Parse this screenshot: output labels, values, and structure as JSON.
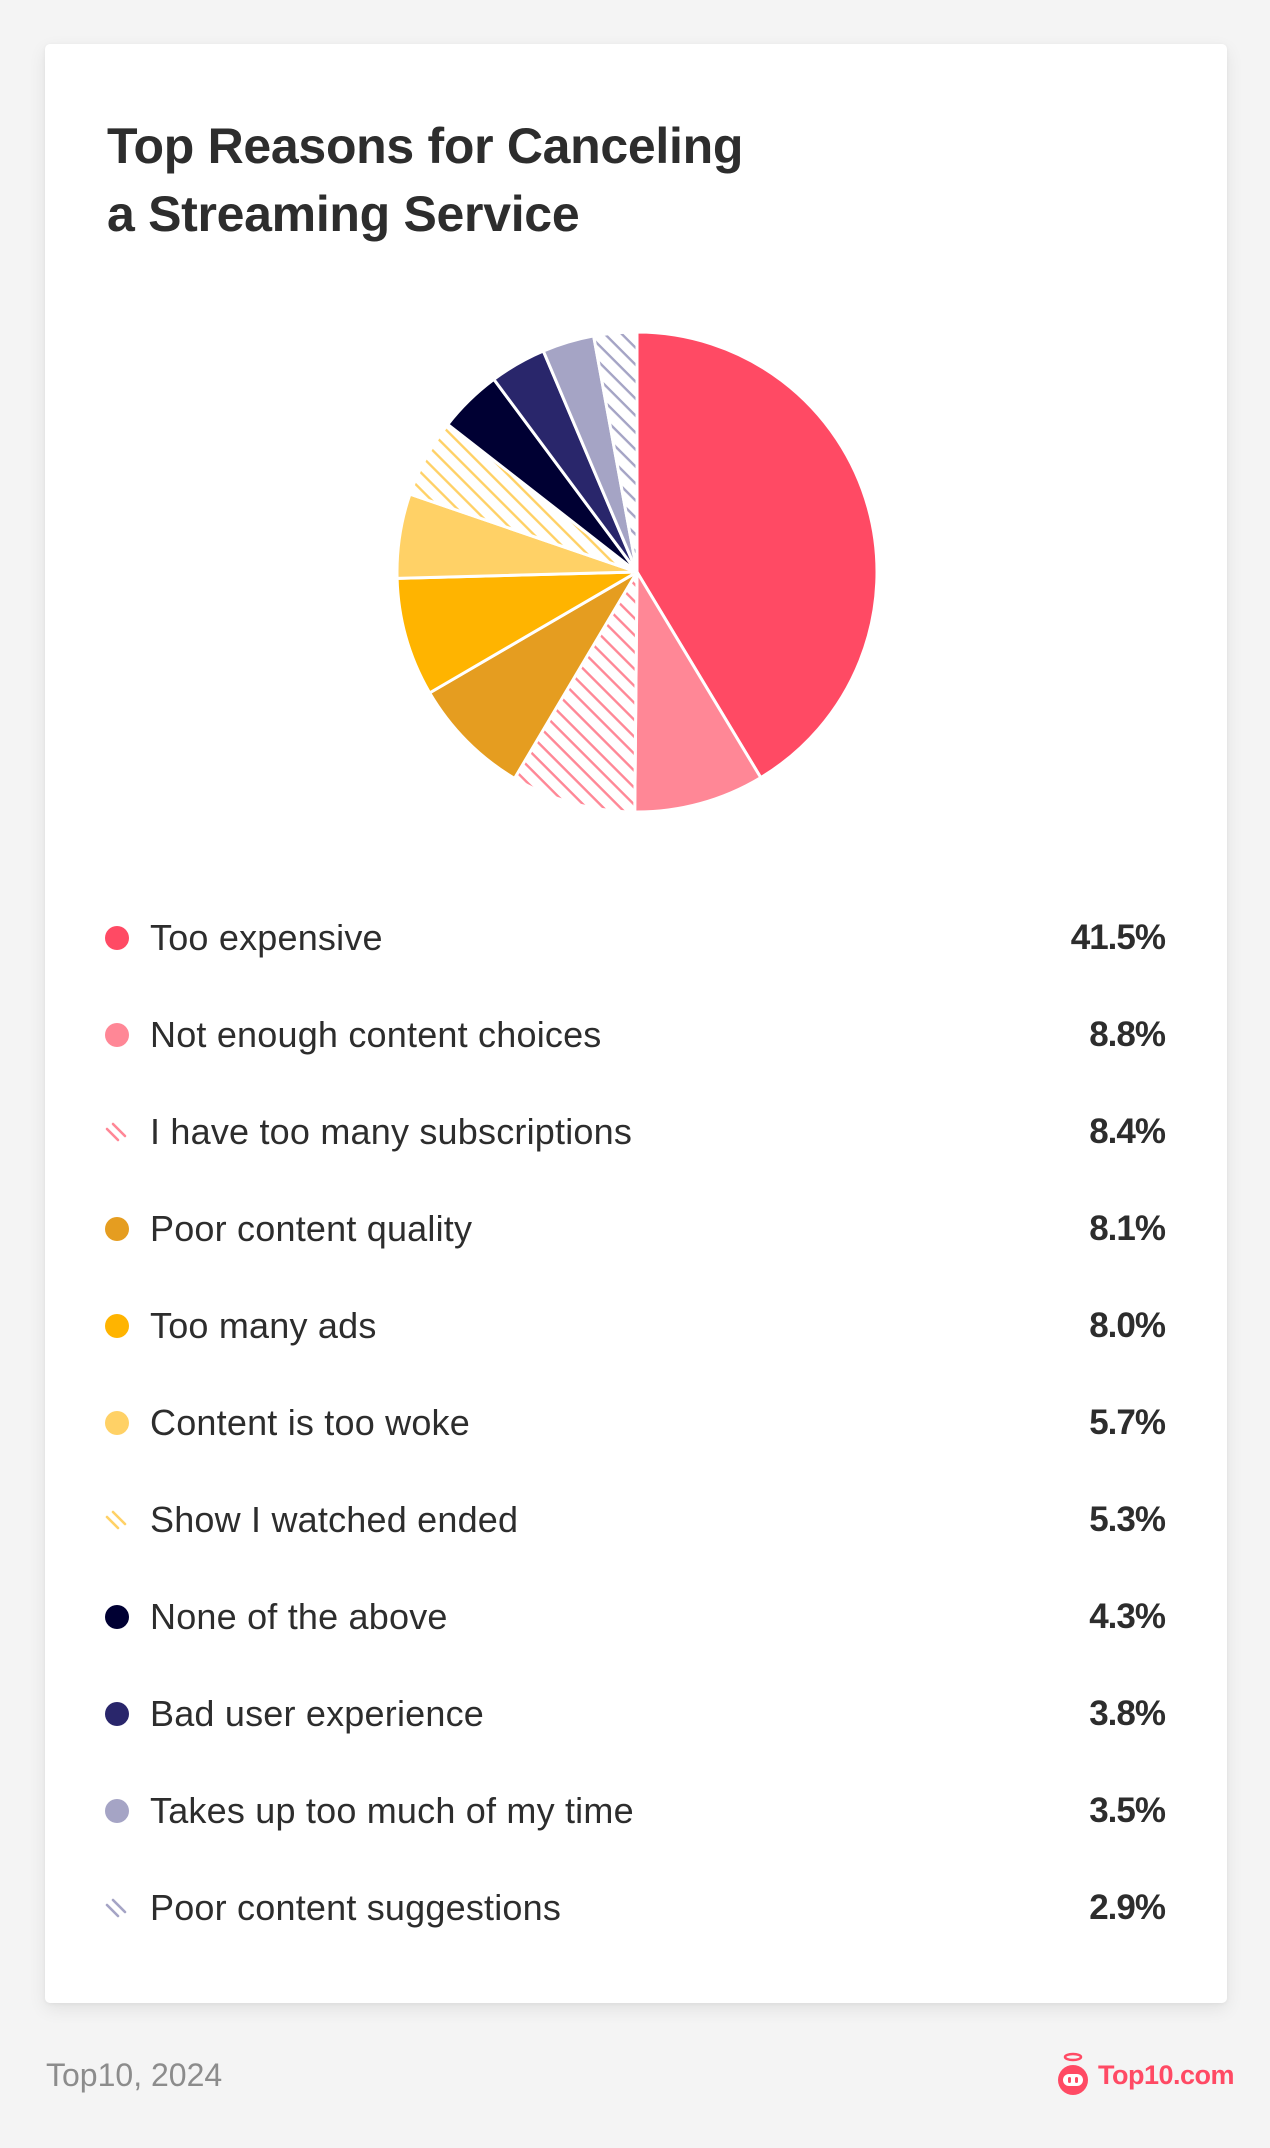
{
  "card": {
    "title_lines": [
      "Top Reasons for Canceling",
      "a Streaming Service"
    ]
  },
  "footer": {
    "source": "Top10, 2024",
    "logo_text": "Top10.com",
    "logo_color": "#ff4a64"
  },
  "chart_data": {
    "type": "pie",
    "title": "Top Reasons for Canceling a Streaming Service",
    "start_angle": "top (12 o'clock)",
    "direction": "clockwise",
    "legend_position": "below",
    "categories": [
      "Too expensive",
      "Not enough content choices",
      "I have too many subscriptions",
      "Poor content quality",
      "Too many ads",
      "Content is too woke",
      "Show I watched ended",
      "None of the above",
      "Bad user experience",
      "Takes up too much of my time",
      "Poor content suggestions"
    ],
    "values": [
      41.5,
      8.8,
      8.4,
      8.1,
      8.0,
      5.7,
      5.3,
      4.3,
      3.8,
      3.5,
      2.9
    ],
    "value_labels": [
      "41.5%",
      "8.8%",
      "8.4%",
      "8.1%",
      "8.0%",
      "5.7%",
      "5.3%",
      "4.3%",
      "3.8%",
      "3.5%",
      "2.9%"
    ],
    "colors": [
      "#ff4a64",
      "#ff8796",
      "#ff8796",
      "#e59d20",
      "#ffb400",
      "#ffd166",
      "#ffd166",
      "#000033",
      "#29266b",
      "#a5a4c5",
      "#a5a4c5"
    ],
    "patterns": [
      "solid",
      "solid",
      "hatch",
      "solid",
      "solid",
      "solid",
      "hatch",
      "solid",
      "solid",
      "solid",
      "hatch"
    ],
    "unit": "%"
  }
}
